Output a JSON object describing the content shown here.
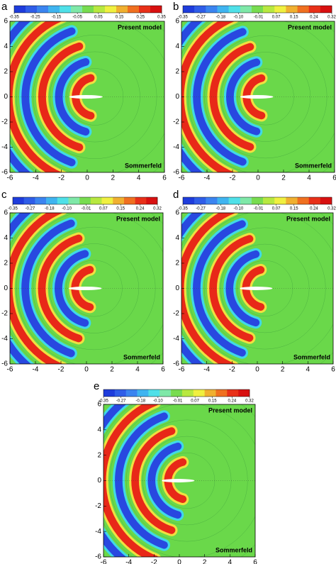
{
  "chart_data": [
    {
      "type": "contour",
      "panel_label": "a",
      "colorbar_lim": [
        -0.35,
        0.35
      ],
      "colorbar_ticks": [
        -0.35,
        -0.25,
        -0.15,
        -0.05,
        0.05,
        0.15,
        0.25,
        0.35
      ],
      "xlim": [
        -6,
        6
      ],
      "ylim": [
        -6,
        6
      ],
      "xticks": [
        -6,
        -4,
        -2,
        0,
        2,
        4,
        6
      ],
      "yticks": [
        -6,
        -4,
        -2,
        0,
        2,
        4,
        6
      ],
      "annotations": [
        "Present model",
        "Sommerfeld"
      ]
    },
    {
      "type": "contour",
      "panel_label": "b",
      "colorbar_lim": [
        -0.35,
        0.32
      ],
      "colorbar_ticks": [
        -0.35,
        -0.27,
        -0.18,
        {
          "value": -0.1,
          "label": "-0.10"
        },
        -0.01,
        0.07,
        0.15,
        0.24,
        0.32
      ],
      "xlim": [
        -6,
        6
      ],
      "ylim": [
        -6,
        6
      ],
      "xticks": [
        -6,
        -4,
        -2,
        0,
        2,
        4,
        6
      ],
      "yticks": [
        -6,
        -4,
        -2,
        0,
        2,
        4,
        6
      ],
      "annotations": [
        "Present model",
        "Sommerfeld"
      ]
    },
    {
      "type": "contour",
      "panel_label": "c",
      "colorbar_lim": [
        -0.35,
        0.32
      ],
      "colorbar_ticks": [
        -0.35,
        -0.27,
        -0.18,
        {
          "value": -0.1,
          "label": "-0.10"
        },
        -0.01,
        0.07,
        0.15,
        0.24,
        0.32
      ],
      "xlim": [
        -6,
        6
      ],
      "ylim": [
        -6,
        6
      ],
      "xticks": [
        -6,
        -4,
        -2,
        0,
        2,
        4,
        6
      ],
      "yticks": [
        -6,
        -4,
        -2,
        0,
        2,
        4,
        6
      ],
      "annotations": [
        "Present model",
        "Sommerfeld"
      ]
    },
    {
      "type": "contour",
      "panel_label": "d",
      "colorbar_lim": [
        -0.35,
        0.32
      ],
      "colorbar_ticks": [
        -0.35,
        -0.27,
        -0.18,
        {
          "value": -0.1,
          "label": "-0.10"
        },
        -0.01,
        0.07,
        0.15,
        0.24,
        0.32
      ],
      "xlim": [
        -6,
        6
      ],
      "ylim": [
        -6,
        6
      ],
      "xticks": [
        -6,
        -4,
        -2,
        0,
        2,
        4,
        6
      ],
      "yticks": [
        -6,
        -4,
        -2,
        0,
        2,
        4,
        6
      ],
      "annotations": [
        "Present model",
        "Sommerfeld"
      ]
    },
    {
      "type": "contour",
      "panel_label": "e",
      "colorbar_lim": [
        -0.35,
        0.32
      ],
      "colorbar_ticks": [
        -0.35,
        -0.27,
        -0.18,
        {
          "value": -0.1,
          "label": "-0.10"
        },
        -0.01,
        0.07,
        0.15,
        0.24,
        0.32
      ],
      "xlim": [
        -6,
        6
      ],
      "ylim": [
        -6,
        6
      ],
      "xticks": [
        -6,
        -4,
        -2,
        0,
        2,
        4,
        6
      ],
      "yticks": [
        -6,
        -4,
        -2,
        0,
        2,
        4,
        6
      ],
      "annotations": [
        "Present model",
        "Sommerfeld"
      ]
    }
  ]
}
